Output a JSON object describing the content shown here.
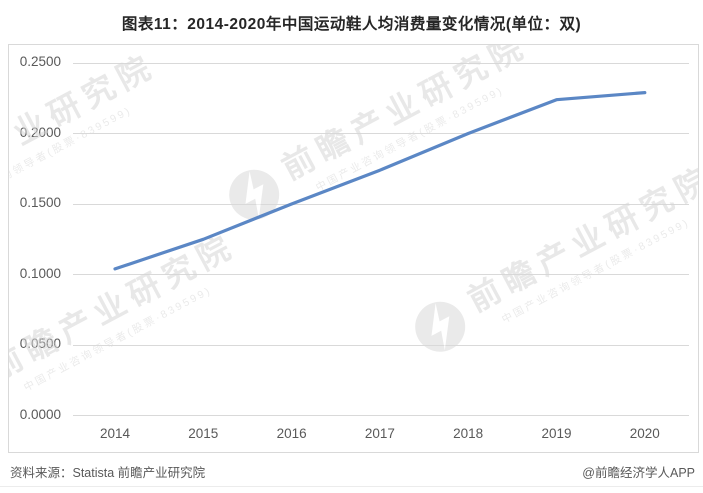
{
  "title": "图表11：2014-2020年中国运动鞋人均消费量变化情况(单位：双)",
  "chart_data": {
    "type": "line",
    "title": "图表11：2014-2020年中国运动鞋人均消费量变化情况(单位：双)",
    "categories": [
      "2014",
      "2015",
      "2016",
      "2017",
      "2018",
      "2019",
      "2020"
    ],
    "values": [
      0.104,
      0.125,
      0.15,
      0.174,
      0.2,
      0.224,
      0.229
    ],
    "unit": "双",
    "ylim": [
      0,
      0.25
    ],
    "y_tick_labels_top_to_bottom": [
      "0.2500",
      "0.2000",
      "0.1500",
      "0.1000",
      "0.0500",
      "0.0000"
    ],
    "grid": "horizontal",
    "legend": "none",
    "line_color": "#5b87c5",
    "gridline_color": "#d9d9d9",
    "axis_label_color": "#595959"
  },
  "footer": {
    "source": "资料来源：Statista 前瞻产业研究院",
    "credit": "@前瞻经济学人APP"
  },
  "watermark": {
    "text": "前瞻产业研究院",
    "subtext": "中国产业咨询领导者(股票·839599)"
  }
}
